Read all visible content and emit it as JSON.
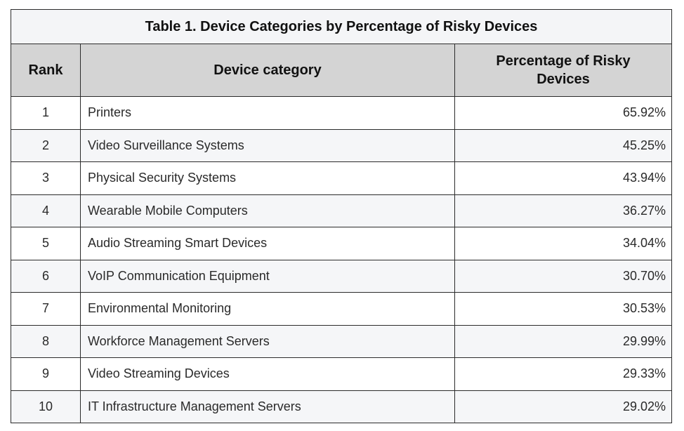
{
  "table": {
    "caption": "Table 1. Device Categories by Percentage of Risky Devices",
    "headers": {
      "rank": "Rank",
      "category": "Device category",
      "percentage": "Percentage of Risky Devices"
    },
    "rows": [
      {
        "rank": "1",
        "category": "Printers",
        "percentage": "65.92%"
      },
      {
        "rank": "2",
        "category": "Video Surveillance Systems",
        "percentage": "45.25%"
      },
      {
        "rank": "3",
        "category": "Physical Security Systems",
        "percentage": "43.94%"
      },
      {
        "rank": "4",
        "category": "Wearable Mobile Computers",
        "percentage": "36.27%"
      },
      {
        "rank": "5",
        "category": "Audio Streaming Smart Devices",
        "percentage": "34.04%"
      },
      {
        "rank": "6",
        "category": "VoIP Communication Equipment",
        "percentage": "30.70%"
      },
      {
        "rank": "7",
        "category": "Environmental Monitoring",
        "percentage": "30.53%"
      },
      {
        "rank": "8",
        "category": "Workforce Management Servers",
        "percentage": "29.99%"
      },
      {
        "rank": "9",
        "category": "Video Streaming Devices",
        "percentage": "29.33%"
      },
      {
        "rank": "10",
        "category": "IT Infrastructure Management Servers",
        "percentage": "29.02%"
      }
    ]
  }
}
